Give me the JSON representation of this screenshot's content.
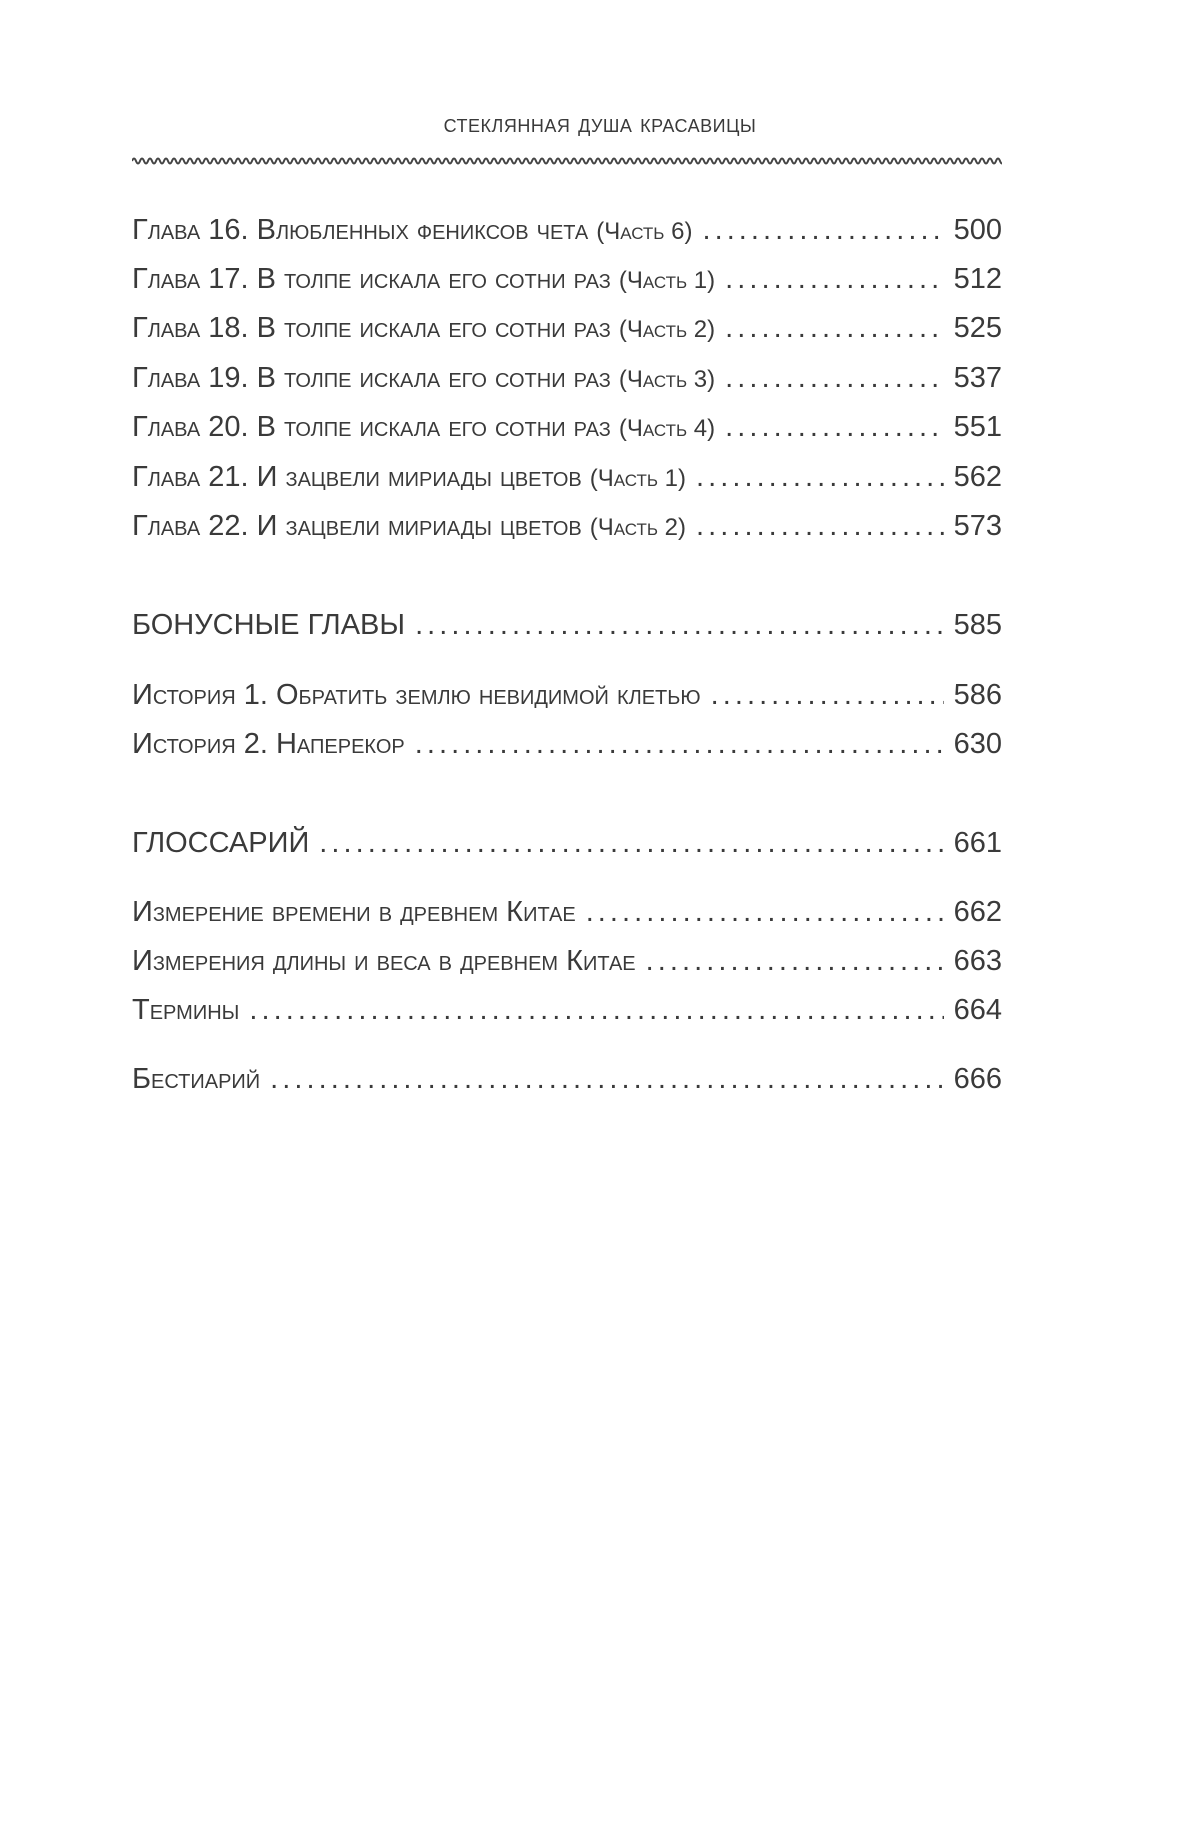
{
  "header": {
    "title": "Стеклянная душа красавицы"
  },
  "chapters": [
    {
      "title": "Глава 16. Влюбленных фениксов чета",
      "part": "(Часть 6)",
      "page": "500"
    },
    {
      "title": "Глава 17. В толпе искала его сотни раз",
      "part": "(Часть 1)",
      "page": "512"
    },
    {
      "title": "Глава 18. В толпе искала его сотни раз",
      "part": "(Часть 2)",
      "page": "525"
    },
    {
      "title": "Глава 19. В толпе искала его сотни раз",
      "part": "(Часть 3)",
      "page": "537"
    },
    {
      "title": "Глава 20. В толпе искала его сотни раз",
      "part": "(Часть 4)",
      "page": "551"
    },
    {
      "title": "Глава 21. И зацвели мириады цветов",
      "part": "(Часть 1)",
      "page": "562"
    },
    {
      "title": "Глава 22. И зацвели мириады цветов",
      "part": "(Часть 2)",
      "page": "573"
    }
  ],
  "bonus": {
    "title": "БОНУСНЫЕ ГЛАВЫ",
    "page": "585",
    "items": [
      {
        "title": "История 1. Обратить землю невидимой клетью",
        "page": "586"
      },
      {
        "title": "История 2. Наперекор",
        "page": "630"
      }
    ]
  },
  "glossary": {
    "title": "ГЛОССАРИЙ",
    "page": "661",
    "items": [
      {
        "title": "Измерение времени в древнем Китае",
        "page": "662"
      },
      {
        "title": "Измерения длины и веса в древнем Китае",
        "page": "663"
      },
      {
        "title": "Термины",
        "page": "664"
      }
    ]
  },
  "bestiary": {
    "title": "Бестиарий",
    "page": "666"
  }
}
